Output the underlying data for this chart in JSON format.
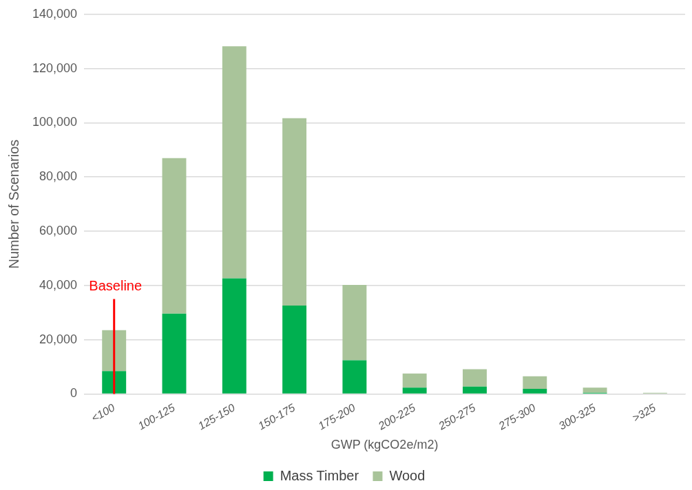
{
  "chart_data": {
    "type": "bar",
    "xlabel": "GWP (kgCO2e/m2)",
    "ylabel": "Number of Scenarios",
    "categories": [
      "<100",
      "100-125",
      "125-150",
      "150-175",
      "175-200",
      "200-225",
      "250-275",
      "275-300",
      "300-325",
      ">325"
    ],
    "stacked": true,
    "series": [
      {
        "name": "Mass Timber",
        "color": "#00b050",
        "values": [
          8400,
          29600,
          42600,
          32600,
          12400,
          2300,
          2700,
          1900,
          400,
          0
        ]
      },
      {
        "name": "Wood",
        "color": "#a9c49a",
        "values": [
          15100,
          57400,
          85600,
          69100,
          27800,
          5200,
          6400,
          4600,
          1900,
          400
        ]
      }
    ],
    "ylim": [
      0,
      140000
    ],
    "yticks": [
      {
        "value": 0,
        "label": "0"
      },
      {
        "value": 20000,
        "label": "20,000"
      },
      {
        "value": 40000,
        "label": "40,000"
      },
      {
        "value": 60000,
        "label": "60,000"
      },
      {
        "value": 80000,
        "label": "80,000"
      },
      {
        "value": 100000,
        "label": "100,000"
      },
      {
        "value": 120000,
        "label": "120,000"
      },
      {
        "value": 140000,
        "label": "140,000"
      }
    ],
    "grid": "y",
    "legend": "bottom",
    "ref_lines": [
      {
        "axis": "x",
        "value": "<100",
        "label": "Baseline",
        "color": "#ff0000"
      }
    ]
  }
}
